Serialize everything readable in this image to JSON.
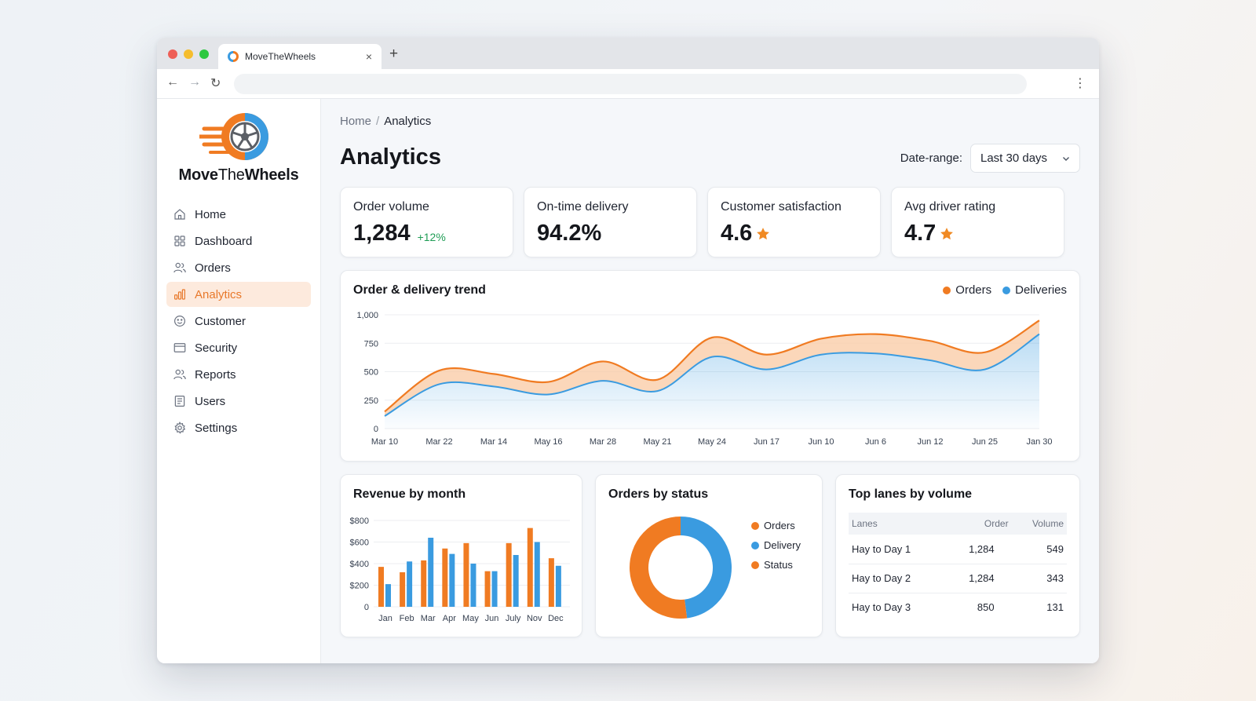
{
  "browser": {
    "tab_title": "MoveTheWheels",
    "close_symbol": "×",
    "new_tab_symbol": "+",
    "back_symbol": "←",
    "forward_symbol": "→",
    "reload_symbol": "↻",
    "menu_symbol": "⋮",
    "address": ""
  },
  "brand": {
    "name_part1": "Move",
    "name_part2": "The",
    "name_part3": "Wheels",
    "accent": "#f07b22",
    "secondary": "#3a9be0"
  },
  "sidebar": {
    "items": [
      {
        "label": "Home",
        "icon": "home-icon"
      },
      {
        "label": "Dashboard",
        "icon": "grid-icon"
      },
      {
        "label": "Orders",
        "icon": "users-icon"
      },
      {
        "label": "Analytics",
        "icon": "bar-chart-icon",
        "active": true
      },
      {
        "label": "Customer",
        "icon": "smile-icon"
      },
      {
        "label": "Security",
        "icon": "card-icon"
      },
      {
        "label": "Reports",
        "icon": "users-icon"
      },
      {
        "label": "Users",
        "icon": "list-icon"
      },
      {
        "label": "Settings",
        "icon": "gear-icon"
      }
    ]
  },
  "breadcrumb": {
    "home": "Home",
    "separator": "/",
    "current": "Analytics"
  },
  "page": {
    "title": "Analytics"
  },
  "date_range": {
    "label": "Date-range:",
    "value": "Last 30 days"
  },
  "kpis": [
    {
      "label": "Order volume",
      "value": "1,284",
      "delta": "+12%"
    },
    {
      "label": "On-time delivery",
      "value": "94.2%"
    },
    {
      "label": "Customer satisfaction",
      "value": "4.6"
    },
    {
      "label": "Avg driver rating",
      "value": "4.7"
    }
  ],
  "trend": {
    "title": "Order & delivery trend",
    "legend": [
      "Orders",
      "Deliveries"
    ]
  },
  "revenue": {
    "title": "Revenue by month"
  },
  "status": {
    "title": "Orders by status",
    "legend": [
      "Orders",
      "Delivery",
      "Status"
    ]
  },
  "lanes": {
    "title": "Top lanes by volume",
    "columns": [
      "Lanes",
      "Order",
      "Volume"
    ],
    "rows": [
      {
        "lane": "Hay to Day 1",
        "order": "1,284",
        "volume": "549"
      },
      {
        "lane": "Hay to Day 2",
        "order": "1,284",
        "volume": "343"
      },
      {
        "lane": "Hay to Day 3",
        "order": "850",
        "volume": "131"
      }
    ]
  },
  "colors": {
    "orange": "#f07b22",
    "blue": "#3a9be0",
    "green": "#1f9d55",
    "star": "#f08a24"
  },
  "chart_data": [
    {
      "type": "area",
      "title": "Order & delivery trend",
      "categories": [
        "Mar 10",
        "Mar 22",
        "Mar 14",
        "May 16",
        "Mar 28",
        "May 21",
        "May 24",
        "Jun 17",
        "Jun 10",
        "Jun 6",
        "Jun 12",
        "Jun 25",
        "Jan 30"
      ],
      "yticks": [
        "0",
        "250",
        "500",
        "750",
        "1,000"
      ],
      "ylim": [
        0,
        1000
      ],
      "series": [
        {
          "name": "Orders",
          "color": "#f07b22",
          "values": [
            150,
            510,
            480,
            410,
            590,
            430,
            800,
            650,
            790,
            830,
            770,
            670,
            950
          ]
        },
        {
          "name": "Deliveries",
          "color": "#3a9be0",
          "values": [
            110,
            390,
            370,
            300,
            420,
            330,
            630,
            520,
            650,
            660,
            600,
            520,
            830
          ]
        }
      ],
      "legend_position": "top-right",
      "grid": true
    },
    {
      "type": "bar",
      "title": "Revenue by month",
      "categories": [
        "Jan",
        "Feb",
        "Mar",
        "Apr",
        "May",
        "Jun",
        "July",
        "Nov",
        "Dec"
      ],
      "yticks": [
        "0",
        "$200",
        "$400",
        "$600",
        "$800"
      ],
      "ylim": [
        0,
        800
      ],
      "series": [
        {
          "name": "",
          "color": "#f07b22",
          "values": [
            370,
            320,
            430,
            540,
            590,
            330,
            590,
            730,
            450
          ]
        },
        {
          "name": "",
          "color": "#3a9be0",
          "values": [
            210,
            420,
            640,
            490,
            400,
            330,
            480,
            600,
            380
          ]
        }
      ],
      "grid": true
    },
    {
      "type": "pie",
      "title": "Orders by status",
      "donut": true,
      "slices": [
        {
          "label": "Delivery",
          "value": 48,
          "color": "#3a9be0"
        },
        {
          "label": "Orders",
          "value": 52,
          "color": "#f07b22"
        }
      ]
    }
  ]
}
